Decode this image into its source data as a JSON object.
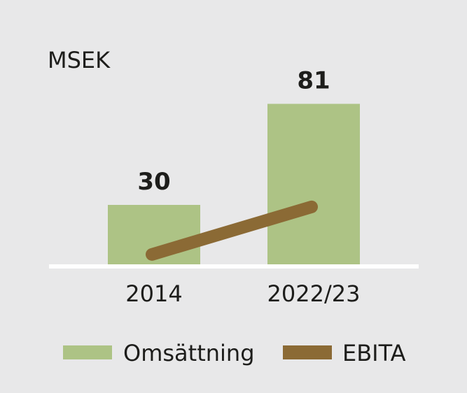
{
  "chart_data": {
    "type": "bar",
    "unit": "MSEK",
    "categories": [
      "2014",
      "2022/23"
    ],
    "series": [
      {
        "name": "Omsättning",
        "type": "bar",
        "values": [
          30,
          81
        ],
        "data_labels": [
          "30",
          "81"
        ],
        "color": "#adc385"
      },
      {
        "name": "EBITA",
        "type": "line",
        "values": [
          5,
          29
        ],
        "color": "#8b6a35"
      }
    ],
    "ylim": [
      0,
      90
    ],
    "grid": false,
    "legend_position": "bottom"
  }
}
